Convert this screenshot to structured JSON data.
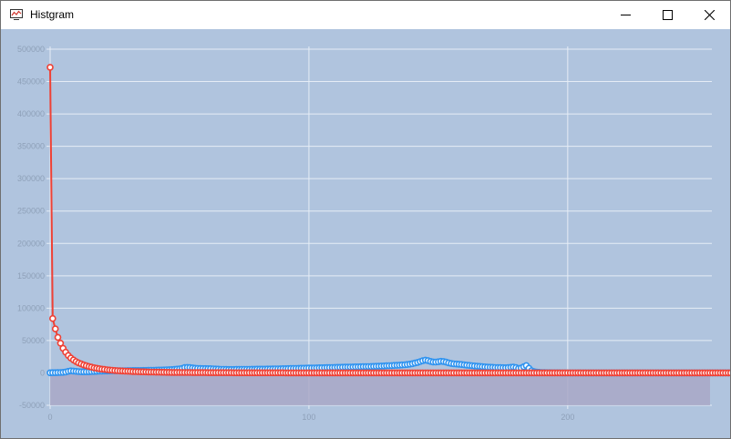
{
  "window": {
    "title": "Histgram"
  },
  "colors": {
    "plot_bg": "#b0c4de",
    "grid": "#e6edf6",
    "series_a": "#ef4135",
    "series_b": "#2e93f0",
    "area": "#a9a8c7"
  },
  "chart_data": {
    "type": "line",
    "xlim": [
      0,
      255
    ],
    "ylim": [
      -50000,
      500000
    ],
    "yticks": [
      500000,
      450000,
      400000,
      350000,
      300000,
      250000,
      200000,
      150000,
      100000,
      50000,
      0,
      -50000
    ],
    "xticks": [
      0,
      100,
      200
    ],
    "grid": true,
    "legend": "none",
    "series": [
      {
        "color": "#ef4135",
        "values": [
          472000,
          84000,
          68000,
          55000,
          46000,
          38000,
          32000,
          27000,
          23000,
          20000,
          17500,
          15500,
          13800,
          12300,
          11000,
          9900,
          8900,
          8000,
          7200,
          6500,
          5900,
          5400,
          4900,
          4500,
          4100,
          3800,
          3500,
          3200,
          3000,
          2800,
          2600,
          2400,
          2250,
          2100,
          1950,
          1800,
          1700,
          1600,
          1500,
          1400,
          1300,
          1220,
          1150,
          1080,
          1010,
          950,
          900,
          850,
          800,
          760,
          720,
          680,
          640,
          610,
          580,
          550,
          520,
          500,
          480,
          460,
          440,
          420,
          400,
          385,
          370,
          355,
          340,
          325,
          310,
          300,
          290,
          280,
          270,
          260,
          250,
          240,
          230,
          220,
          210,
          205,
          200,
          195,
          190,
          185,
          180,
          175,
          170,
          165,
          160,
          155,
          150,
          145,
          140,
          135,
          130,
          126,
          122,
          118,
          114,
          110,
          106,
          102,
          99,
          96,
          93,
          90,
          87,
          84,
          81,
          78,
          76,
          74,
          72,
          70,
          68,
          66,
          64,
          62,
          60,
          58,
          56,
          54,
          52,
          50,
          49,
          48,
          47,
          46,
          45,
          44,
          43,
          42,
          41,
          40,
          39,
          38,
          37,
          36,
          35,
          34,
          33,
          32,
          31,
          30,
          29,
          28,
          27,
          26,
          25,
          24,
          23,
          22,
          21,
          20,
          20,
          20,
          20,
          20,
          20,
          20,
          20,
          20,
          20,
          20,
          20,
          20,
          20,
          20,
          20,
          20,
          20,
          20,
          20,
          20,
          20,
          20,
          20,
          20,
          20,
          20,
          20,
          20,
          20,
          20,
          20,
          20,
          20,
          20,
          20,
          20,
          20,
          20,
          20,
          20,
          20,
          20,
          20,
          20,
          20,
          20,
          20,
          20,
          20,
          20,
          20,
          20,
          20,
          20,
          20,
          20,
          20,
          20,
          20,
          20,
          20,
          20,
          20,
          20,
          20,
          20,
          20,
          20,
          20,
          20,
          20,
          20,
          20,
          20,
          20,
          20,
          20,
          20,
          20,
          20,
          20,
          20,
          20,
          20,
          20,
          20,
          20,
          20,
          20,
          20,
          20,
          20,
          20,
          20,
          20,
          20,
          20,
          20,
          20,
          20,
          20,
          20,
          20,
          20,
          20,
          20,
          20,
          20,
          20,
          20,
          20,
          20,
          20,
          20,
          20,
          20,
          20,
          20,
          20,
          20,
          20,
          20,
          8000
        ]
      },
      {
        "color": "#2e93f0",
        "values": [
          200,
          300,
          400,
          500,
          600,
          900,
          1500,
          2500,
          3200,
          2900,
          2400,
          2000,
          1800,
          1700,
          1700,
          1800,
          2000,
          2300,
          2500,
          2700,
          2900,
          3000,
          3100,
          3200,
          3300,
          3300,
          3400,
          3400,
          3500,
          3500,
          3600,
          3600,
          3700,
          3700,
          3800,
          3800,
          3900,
          3900,
          4000,
          4100,
          4200,
          4300,
          4400,
          4500,
          4600,
          4800,
          5000,
          5200,
          5400,
          5800,
          6300,
          7000,
          8200,
          8500,
          8300,
          7800,
          7300,
          7000,
          6800,
          6700,
          6700,
          6600,
          6500,
          6300,
          6000,
          5800,
          5600,
          5500,
          5400,
          5300,
          5300,
          5300,
          5400,
          5400,
          5500,
          5500,
          5600,
          5600,
          5700,
          5700,
          5800,
          5800,
          5900,
          5900,
          6000,
          6000,
          6100,
          6200,
          6300,
          6400,
          6500,
          6600,
          6700,
          6800,
          6900,
          7000,
          7100,
          7200,
          7300,
          7400,
          7500,
          7600,
          7700,
          7800,
          7900,
          8000,
          8100,
          8200,
          8300,
          8400,
          8500,
          8600,
          8700,
          8800,
          8900,
          9000,
          9100,
          9200,
          9300,
          9400,
          9500,
          9600,
          9700,
          9800,
          9900,
          10000,
          10200,
          10400,
          10600,
          10800,
          11000,
          11200,
          11400,
          11600,
          11800,
          12000,
          12300,
          12600,
          13000,
          13600,
          14300,
          15200,
          16300,
          17500,
          18800,
          19700,
          19000,
          17800,
          17000,
          16800,
          17200,
          17900,
          17700,
          16700,
          15500,
          14600,
          14000,
          13700,
          13400,
          13000,
          12500,
          12000,
          11600,
          11200,
          10800,
          10400,
          10000,
          9600,
          9300,
          9000,
          8800,
          8600,
          8400,
          8300,
          8200,
          8100,
          8000,
          8300,
          8700,
          9000,
          8200,
          7000,
          7600,
          9500,
          11300,
          7200,
          3500,
          2000,
          1300,
          900,
          700,
          500,
          400,
          300,
          250,
          200,
          180,
          160,
          140,
          120,
          100,
          90,
          80,
          70,
          60,
          50,
          50,
          50,
          50,
          50,
          50,
          50,
          50,
          50,
          50,
          50,
          50,
          50,
          50,
          50,
          50,
          50,
          50,
          50,
          50,
          50,
          50,
          50,
          50,
          50,
          50,
          50,
          50,
          50,
          50,
          50,
          50,
          50,
          50,
          50,
          50,
          50,
          50,
          50,
          50,
          50,
          50,
          50,
          50,
          50,
          50,
          50,
          50,
          50,
          50,
          50,
          50,
          50,
          50,
          50,
          50,
          50,
          50,
          50,
          50,
          50,
          50,
          50,
          50,
          50,
          50
        ]
      }
    ]
  }
}
